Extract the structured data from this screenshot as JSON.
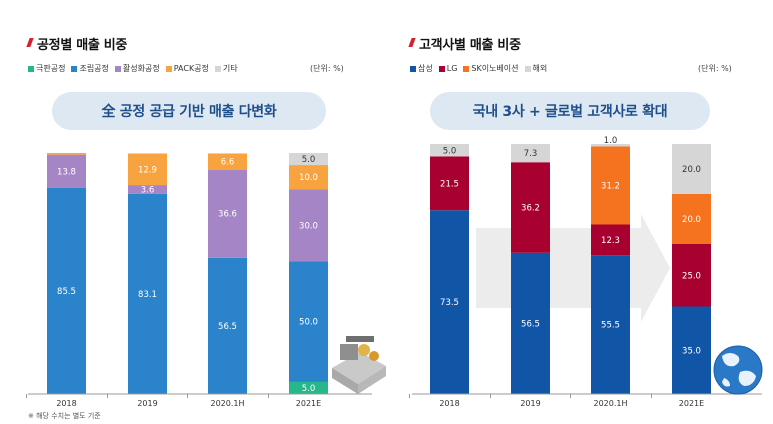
{
  "left": {
    "title": "공정별 매출 비중",
    "unit": "(단위: %)",
    "banner": "全 공정 공급 기반 매출 다변화",
    "footnote": "※ 해당 수치는 별도 기준"
  },
  "right": {
    "title": "고객사별 매출 비중",
    "unit": "(단위: %)",
    "banner": "국내 3사 + 글로벌 고객사로 확대"
  },
  "colors": {
    "title_mark": "#d7202f",
    "banner_bg": "#dde8f3",
    "banner_text": "#1f4f8a"
  },
  "illustration_icons": [
    "machine-icon",
    "globe-icon"
  ],
  "chart_data": [
    {
      "type": "bar",
      "stacked": true,
      "title": "공정별 매출 비중",
      "unit": "(단위: %)",
      "categories": [
        "2018",
        "2019",
        "2020.1H",
        "2021E"
      ],
      "series": [
        {
          "name": "극판공정",
          "color": "#26b88a",
          "values": [
            0,
            0,
            0,
            5.0
          ],
          "labels": [
            "",
            "",
            "",
            "5.0"
          ]
        },
        {
          "name": "조립공정",
          "color": "#2b83cb",
          "values": [
            85.5,
            83.1,
            56.5,
            50.0
          ],
          "labels": [
            "85.5",
            "83.1",
            "56.5",
            "50.0"
          ]
        },
        {
          "name": "활성화공정",
          "color": "#a585c5",
          "values": [
            13.8,
            3.6,
            36.6,
            30.0
          ],
          "labels": [
            "13.8",
            "3.6",
            "36.6",
            "30.0"
          ]
        },
        {
          "name": "PACK공정",
          "color": "#f7a440",
          "values": [
            0.7,
            12.9,
            6.6,
            10.0
          ],
          "labels": [
            "",
            "12.9",
            "6.6",
            "10.0"
          ]
        },
        {
          "name": "기타",
          "color": "#d6d6d6",
          "values": [
            0,
            0.4,
            0.3,
            5.0
          ],
          "labels": [
            "",
            "",
            "",
            "5.0"
          ]
        }
      ],
      "ylim": [
        0,
        100
      ]
    },
    {
      "type": "bar",
      "stacked": true,
      "title": "고객사별 매출 비중",
      "unit": "(단위: %)",
      "categories": [
        "2018",
        "2019",
        "2020.1H",
        "2021E"
      ],
      "series": [
        {
          "name": "삼성",
          "color": "#1155a6",
          "values": [
            73.5,
            56.5,
            55.5,
            35.0
          ],
          "labels": [
            "73.5",
            "56.5",
            "55.5",
            "35.0"
          ]
        },
        {
          "name": "LG",
          "color": "#a8002f",
          "values": [
            21.5,
            36.2,
            12.3,
            25.0
          ],
          "labels": [
            "21.5",
            "36.2",
            "12.3",
            "25.0"
          ]
        },
        {
          "name": "SK이노베이션",
          "color": "#f5731f",
          "values": [
            0,
            0,
            31.2,
            20.0
          ],
          "labels": [
            "",
            "",
            "31.2",
            "20.0"
          ]
        },
        {
          "name": "해외",
          "color": "#d6d6d6",
          "values": [
            5.0,
            7.3,
            1.0,
            20.0
          ],
          "labels": [
            "5.0",
            "7.3",
            "1.0",
            "20.0"
          ]
        }
      ],
      "ylim": [
        0,
        100
      ]
    }
  ]
}
